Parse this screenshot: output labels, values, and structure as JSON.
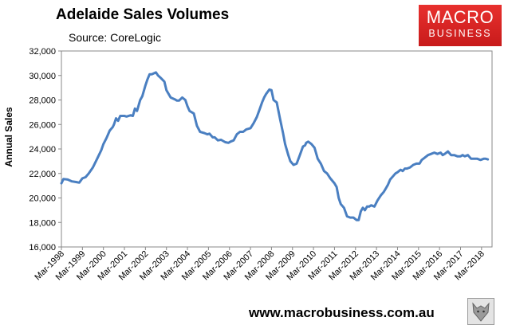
{
  "header": {
    "title": "Adelaide Sales Volumes",
    "source": "Source: CoreLogic"
  },
  "logo": {
    "line1": "MACRO",
    "line2": "BUSINESS",
    "bg_color": "#d42121"
  },
  "footer": {
    "url": "www.macrobusiness.com.au",
    "wolf_icon": "wolf-logo-icon"
  },
  "chart_data": {
    "type": "line",
    "title": "Adelaide Sales Volumes",
    "xlabel": "",
    "ylabel": "Annual Sales",
    "ylim": [
      16000,
      32000
    ],
    "yticks": [
      16000,
      18000,
      20000,
      22000,
      24000,
      26000,
      28000,
      30000,
      32000
    ],
    "ytick_labels": [
      "16,000",
      "18,000",
      "20,000",
      "22,000",
      "24,000",
      "26,000",
      "28,000",
      "30,000",
      "32,000"
    ],
    "xlim": [
      1998.0,
      2018.5
    ],
    "xticks": [
      1998,
      1999,
      2000,
      2001,
      2002,
      2003,
      2004,
      2005,
      2006,
      2007,
      2008,
      2009,
      2010,
      2011,
      2012,
      2013,
      2014,
      2015,
      2016,
      2017,
      2018
    ],
    "xtick_labels": [
      "Mar-1998",
      "Mar-1999",
      "Mar-2000",
      "Mar-2001",
      "Mar-2002",
      "Mar-2003",
      "Mar-2004",
      "Mar-2005",
      "Mar-2006",
      "Mar-2007",
      "Mar-2008",
      "Mar-2009",
      "Mar-2010",
      "Mar-2011",
      "Mar-2012",
      "Mar-2013",
      "Mar-2014",
      "Mar-2015",
      "Mar-2016",
      "Mar-2017",
      "Mar-2018"
    ],
    "grid": false,
    "line_color": "#4a7fc1",
    "series": [
      {
        "x": [
          1998.0,
          1998.1,
          1998.3,
          1998.5,
          1998.7,
          1998.85,
          1999.0,
          1999.15,
          1999.3,
          1999.5,
          1999.7,
          1999.9,
          2000.0,
          2000.15,
          2000.3,
          2000.45,
          2000.5,
          2000.6,
          2000.7,
          2000.8,
          2001.0,
          2001.1,
          2001.3,
          2001.4,
          2001.5,
          2001.6,
          2001.75,
          2001.85,
          2002.0,
          2002.1,
          2002.2,
          2002.3,
          2002.5,
          2002.6,
          2002.7,
          2002.9,
          2003.0,
          2003.2,
          2003.4,
          2003.5,
          2003.6,
          2003.75,
          2003.9,
          2004.0,
          2004.1,
          2004.3,
          2004.45,
          2004.6,
          2004.8,
          2004.95,
          2005.05,
          2005.2,
          2005.3,
          2005.45,
          2005.6,
          2005.8,
          2005.95,
          2006.05,
          2006.2,
          2006.35,
          2006.5,
          2006.65,
          2006.8,
          2007.0,
          2007.15,
          2007.3,
          2007.45,
          2007.55,
          2007.65,
          2007.75,
          2007.9,
          2008.0,
          2008.1,
          2008.25,
          2008.4,
          2008.55,
          2008.65,
          2008.8,
          2008.9,
          2009.05,
          2009.2,
          2009.35,
          2009.5,
          2009.6,
          2009.65,
          2009.75,
          2009.9,
          2010.05,
          2010.2,
          2010.35,
          2010.5,
          2010.65,
          2010.8,
          2011.0,
          2011.1,
          2011.2,
          2011.3,
          2011.45,
          2011.6,
          2011.75,
          2011.9,
          2012.05,
          2012.15,
          2012.25,
          2012.35,
          2012.45,
          2012.55,
          2012.65,
          2012.75,
          2012.9,
          2013.05,
          2013.2,
          2013.35,
          2013.45,
          2013.55,
          2013.65,
          2013.8,
          2013.9,
          2014.0,
          2014.15,
          2014.25,
          2014.35,
          2014.45,
          2014.6,
          2014.75,
          2014.9,
          2015.05,
          2015.15,
          2015.3,
          2015.45,
          2015.6,
          2015.75,
          2015.9,
          2016.05,
          2016.15,
          2016.25,
          2016.4,
          2016.55,
          2016.7,
          2016.85,
          2017.0,
          2017.1,
          2017.2,
          2017.35,
          2017.5,
          2017.65,
          2017.8,
          2017.95,
          2018.1,
          2018.2,
          2018.3
        ],
        "y": [
          21200,
          21550,
          21500,
          21350,
          21300,
          21250,
          21600,
          21700,
          22000,
          22500,
          23200,
          23900,
          24400,
          24900,
          25500,
          25800,
          26000,
          26500,
          26300,
          26700,
          26700,
          26650,
          26750,
          26700,
          27300,
          27100,
          28000,
          28300,
          29200,
          29700,
          30100,
          30100,
          30250,
          30000,
          29850,
          29500,
          28800,
          28200,
          28050,
          27950,
          27950,
          28200,
          28000,
          27500,
          27100,
          26900,
          25900,
          25400,
          25300,
          25200,
          25250,
          24950,
          24950,
          24700,
          24750,
          24550,
          24500,
          24600,
          24700,
          25200,
          25400,
          25400,
          25600,
          25700,
          26100,
          26600,
          27300,
          27800,
          28200,
          28500,
          28850,
          28800,
          28000,
          27800,
          26500,
          25300,
          24400,
          23500,
          23000,
          22700,
          22800,
          23500,
          24200,
          24300,
          24500,
          24600,
          24400,
          24100,
          23200,
          22800,
          22200,
          22000,
          21600,
          21200,
          20900,
          20000,
          19500,
          19200,
          18500,
          18400,
          18400,
          18200,
          18200,
          18900,
          19200,
          19000,
          19300,
          19300,
          19400,
          19300,
          19800,
          20200,
          20500,
          20800,
          21100,
          21500,
          21800,
          22000,
          22100,
          22300,
          22200,
          22400,
          22400,
          22500,
          22700,
          22800,
          22800,
          23100,
          23300,
          23500,
          23600,
          23700,
          23600,
          23700,
          23500,
          23600,
          23800,
          23500,
          23500,
          23400,
          23400,
          23500,
          23400,
          23500,
          23200,
          23200,
          23200,
          23100,
          23200,
          23200,
          23150
        ]
      }
    ]
  }
}
